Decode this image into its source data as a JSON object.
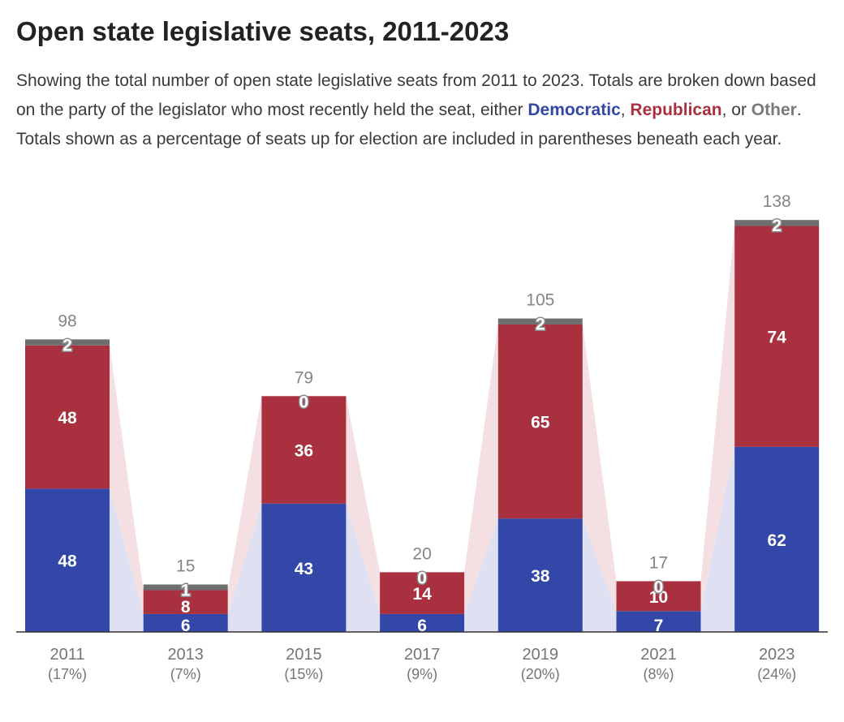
{
  "title": "Open state legislative seats, 2011-2023",
  "subtitle": {
    "part1": "Showing the total number of open state legislative seats from 2011 to 2023. Totals are broken down based on the party of the legislator who most recently held the seat, either ",
    "dem": "Democratic",
    "sep1": ", ",
    "rep": "Republican",
    "sep2": ", or ",
    "other": "Other",
    "part2": ". Totals shown as a percentage of seats up for election are included in parentheses beneath each year."
  },
  "colors": {
    "democratic": "#3347a8",
    "republican": "#a9303f",
    "other": "#6e6e6e",
    "dem_band": "#dfe1f3",
    "rep_band": "#f4dfe2",
    "axis": "#333333"
  },
  "chart_data": {
    "type": "bar",
    "stacked": true,
    "categories": [
      "2011",
      "2013",
      "2015",
      "2017",
      "2019",
      "2021",
      "2023"
    ],
    "percent_labels": [
      "(17%)",
      "(7%)",
      "(15%)",
      "(9%)",
      "(20%)",
      "(8%)",
      "(24%)"
    ],
    "series": [
      {
        "name": "Democratic",
        "values": [
          48,
          6,
          43,
          6,
          38,
          7,
          62
        ]
      },
      {
        "name": "Republican",
        "values": [
          48,
          8,
          36,
          14,
          65,
          10,
          74
        ]
      },
      {
        "name": "Other",
        "values": [
          2,
          1,
          0,
          0,
          2,
          0,
          2
        ]
      }
    ],
    "totals": [
      98,
      15,
      79,
      20,
      105,
      17,
      138
    ],
    "ylim": [
      0,
      138
    ]
  }
}
